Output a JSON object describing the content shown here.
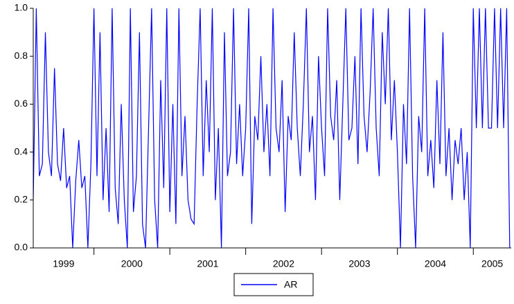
{
  "chart_data": {
    "type": "line",
    "x": [
      1999.2,
      1999.24,
      1999.28,
      1999.32,
      1999.36,
      1999.4,
      1999.44,
      1999.48,
      1999.52,
      1999.56,
      1999.6,
      1999.64,
      1999.68,
      1999.72,
      1999.76,
      1999.8,
      1999.84,
      1999.88,
      1999.92,
      1999.96,
      2000.0,
      2000.04,
      2000.08,
      2000.12,
      2000.16,
      2000.2,
      2000.24,
      2000.28,
      2000.32,
      2000.36,
      2000.4,
      2000.44,
      2000.48,
      2000.52,
      2000.56,
      2000.6,
      2000.64,
      2000.68,
      2000.72,
      2000.76,
      2000.8,
      2000.84,
      2000.88,
      2000.92,
      2000.96,
      2001.0,
      2001.04,
      2001.08,
      2001.12,
      2001.16,
      2001.2,
      2001.24,
      2001.28,
      2001.32,
      2001.36,
      2001.4,
      2001.44,
      2001.48,
      2001.52,
      2001.56,
      2001.6,
      2001.64,
      2001.68,
      2001.72,
      2001.76,
      2001.8,
      2001.84,
      2001.88,
      2001.92,
      2001.96,
      2002.0,
      2002.04,
      2002.08,
      2002.12,
      2002.16,
      2002.2,
      2002.24,
      2002.28,
      2002.32,
      2002.36,
      2002.4,
      2002.44,
      2002.48,
      2002.52,
      2002.56,
      2002.6,
      2002.64,
      2002.68,
      2002.72,
      2002.76,
      2002.8,
      2002.84,
      2002.88,
      2002.92,
      2002.96,
      2003.0,
      2003.04,
      2003.08,
      2003.12,
      2003.16,
      2003.2,
      2003.24,
      2003.28,
      2003.32,
      2003.36,
      2003.4,
      2003.44,
      2003.48,
      2003.52,
      2003.56,
      2003.6,
      2003.64,
      2003.68,
      2003.72,
      2003.76,
      2003.8,
      2003.84,
      2003.88,
      2003.92,
      2003.96,
      2004.0,
      2004.04,
      2004.08,
      2004.12,
      2004.16,
      2004.2,
      2004.24,
      2004.28,
      2004.32,
      2004.36,
      2004.4,
      2004.44,
      2004.48,
      2004.52,
      2004.56,
      2004.6,
      2004.64,
      2004.68,
      2004.72,
      2004.76,
      2004.8,
      2004.84,
      2004.88,
      2004.92,
      2004.96,
      2005.0,
      2005.04,
      2005.08,
      2005.12,
      2005.16,
      2005.2,
      2005.24,
      2005.28,
      2005.32,
      2005.36,
      2005.4,
      2005.44,
      2005.48
    ],
    "series": [
      {
        "name": "AR",
        "color": "#0000ff",
        "values": [
          0.2,
          1.0,
          0.3,
          0.35,
          0.9,
          0.4,
          0.3,
          0.75,
          0.35,
          0.28,
          0.5,
          0.25,
          0.3,
          0.0,
          0.28,
          0.45,
          0.25,
          0.3,
          0.0,
          0.35,
          1.0,
          0.3,
          0.9,
          0.2,
          0.5,
          0.15,
          1.0,
          0.25,
          0.1,
          0.6,
          0.2,
          0.0,
          1.0,
          0.15,
          0.3,
          0.9,
          0.1,
          0.0,
          0.5,
          1.0,
          0.2,
          0.0,
          0.7,
          0.25,
          1.0,
          0.15,
          0.6,
          0.1,
          1.0,
          0.3,
          0.55,
          0.2,
          0.12,
          0.1,
          0.6,
          1.0,
          0.3,
          0.7,
          0.4,
          1.0,
          0.2,
          0.5,
          0.0,
          0.9,
          0.3,
          0.4,
          1.0,
          0.35,
          0.6,
          0.3,
          0.5,
          1.0,
          0.1,
          0.55,
          0.45,
          0.8,
          0.4,
          0.6,
          0.3,
          1.0,
          0.5,
          0.4,
          0.7,
          0.15,
          0.55,
          0.45,
          0.9,
          0.5,
          0.3,
          0.6,
          1.0,
          0.4,
          0.55,
          0.2,
          0.8,
          0.5,
          0.3,
          1.0,
          0.55,
          0.45,
          0.7,
          0.2,
          0.6,
          1.0,
          0.45,
          0.5,
          0.8,
          0.35,
          1.0,
          0.55,
          0.4,
          0.65,
          1.0,
          0.5,
          0.3,
          0.9,
          0.6,
          1.0,
          0.45,
          0.7,
          0.4,
          0.0,
          0.6,
          0.35,
          1.0,
          0.3,
          0.0,
          0.55,
          0.4,
          1.0,
          0.3,
          0.45,
          0.25,
          0.7,
          0.35,
          0.9,
          0.3,
          0.5,
          0.2,
          0.45,
          0.35,
          0.5,
          0.2,
          0.4,
          0.0,
          1.0,
          0.5,
          1.0,
          0.5,
          1.0,
          0.5,
          0.5,
          1.0,
          0.5,
          1.0,
          0.5,
          1.0,
          0.0
        ]
      }
    ],
    "xlim": [
      1999.2,
      2005.5
    ],
    "xticks": [
      {
        "value": 1999.6,
        "label": "1999"
      },
      {
        "value": 2000.5,
        "label": "2000"
      },
      {
        "value": 2001.5,
        "label": "2001"
      },
      {
        "value": 2002.5,
        "label": "2002"
      },
      {
        "value": 2003.5,
        "label": "2003"
      },
      {
        "value": 2004.5,
        "label": "2004"
      },
      {
        "value": 2005.25,
        "label": "2005"
      }
    ],
    "xminor_ticks": [
      2000,
      2001,
      2002,
      2003,
      2004,
      2005
    ],
    "ylim": [
      0,
      1
    ],
    "yticks": [
      {
        "value": 0,
        "label": "0.0"
      },
      {
        "value": 0.2,
        "label": "0.2"
      },
      {
        "value": 0.4,
        "label": "0.4"
      },
      {
        "value": 0.6,
        "label": "0.6"
      },
      {
        "value": 0.8,
        "label": "0.8"
      },
      {
        "value": 1,
        "label": "1.0"
      }
    ],
    "legend": "bottom"
  }
}
